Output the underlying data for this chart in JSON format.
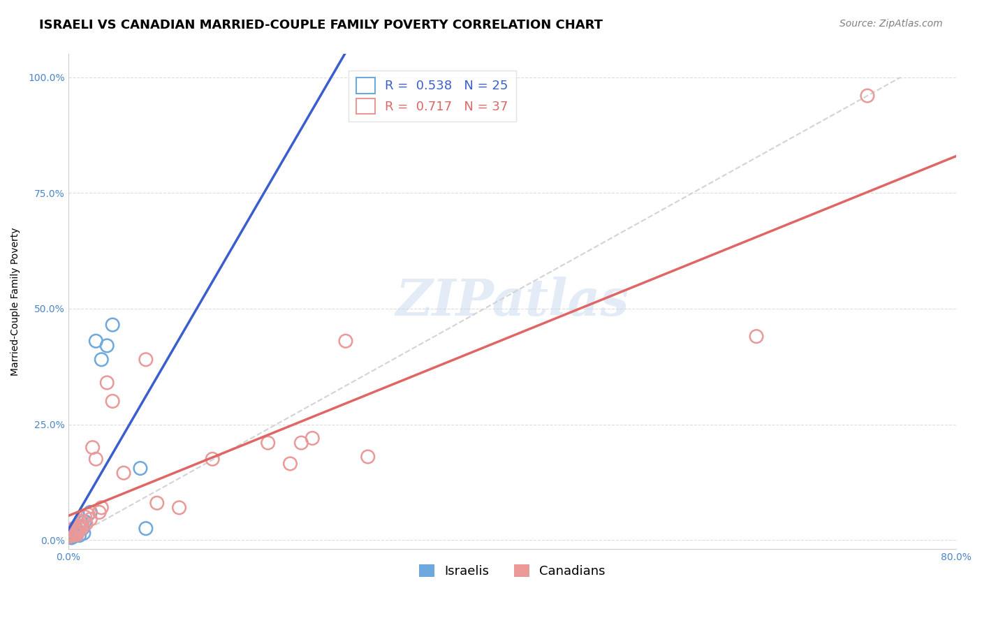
{
  "title": "ISRAELI VS CANADIAN MARRIED-COUPLE FAMILY POVERTY CORRELATION CHART",
  "source": "Source: ZipAtlas.com",
  "ylabel": "Married-Couple Family Poverty",
  "xlabel": "",
  "xlim": [
    0.0,
    0.8
  ],
  "ylim": [
    0.0,
    1.05
  ],
  "yticks": [
    0.0,
    0.25,
    0.5,
    0.75,
    1.0
  ],
  "ytick_labels": [
    "0.0%",
    "25.0%",
    "50.0%",
    "75.0%",
    "100.0%"
  ],
  "xticks": [
    0.0,
    0.1,
    0.2,
    0.3,
    0.4,
    0.5,
    0.6,
    0.7,
    0.8
  ],
  "xtick_labels": [
    "0.0%",
    "",
    "",
    "",
    "",
    "",
    "",
    "",
    "80.0%"
  ],
  "watermark": "ZIPatlas",
  "israelis": {
    "x": [
      0.001,
      0.002,
      0.003,
      0.003,
      0.004,
      0.005,
      0.005,
      0.006,
      0.007,
      0.007,
      0.008,
      0.009,
      0.01,
      0.01,
      0.011,
      0.013,
      0.014,
      0.015,
      0.02,
      0.025,
      0.03,
      0.035,
      0.04,
      0.065,
      0.07
    ],
    "y": [
      0.01,
      0.012,
      0.005,
      0.008,
      0.015,
      0.02,
      0.008,
      0.018,
      0.025,
      0.01,
      0.015,
      0.02,
      0.03,
      0.01,
      0.04,
      0.025,
      0.015,
      0.04,
      0.06,
      0.43,
      0.39,
      0.42,
      0.465,
      0.155,
      0.025
    ],
    "R": 0.538,
    "N": 25,
    "color": "#6fa8dc",
    "line_color": "#3a5fcd"
  },
  "canadians": {
    "x": [
      0.001,
      0.002,
      0.003,
      0.004,
      0.005,
      0.005,
      0.006,
      0.007,
      0.008,
      0.009,
      0.01,
      0.011,
      0.012,
      0.013,
      0.015,
      0.016,
      0.018,
      0.02,
      0.022,
      0.025,
      0.028,
      0.03,
      0.035,
      0.04,
      0.05,
      0.07,
      0.08,
      0.1,
      0.13,
      0.18,
      0.2,
      0.21,
      0.22,
      0.25,
      0.27,
      0.62,
      0.72
    ],
    "y": [
      0.008,
      0.012,
      0.015,
      0.01,
      0.018,
      0.025,
      0.02,
      0.015,
      0.012,
      0.02,
      0.025,
      0.03,
      0.025,
      0.04,
      0.05,
      0.035,
      0.055,
      0.045,
      0.2,
      0.175,
      0.06,
      0.07,
      0.34,
      0.3,
      0.145,
      0.39,
      0.08,
      0.07,
      0.175,
      0.21,
      0.165,
      0.21,
      0.22,
      0.43,
      0.18,
      0.44,
      0.96
    ],
    "R": 0.717,
    "N": 37,
    "color": "#ea9999",
    "line_color": "#e06666"
  },
  "background_color": "#ffffff",
  "grid_color": "#dddddd",
  "tick_color": "#4a86c8",
  "axis_color": "#cccccc",
  "title_fontsize": 13,
  "source_fontsize": 10,
  "label_fontsize": 10,
  "tick_fontsize": 10,
  "legend_fontsize": 13
}
